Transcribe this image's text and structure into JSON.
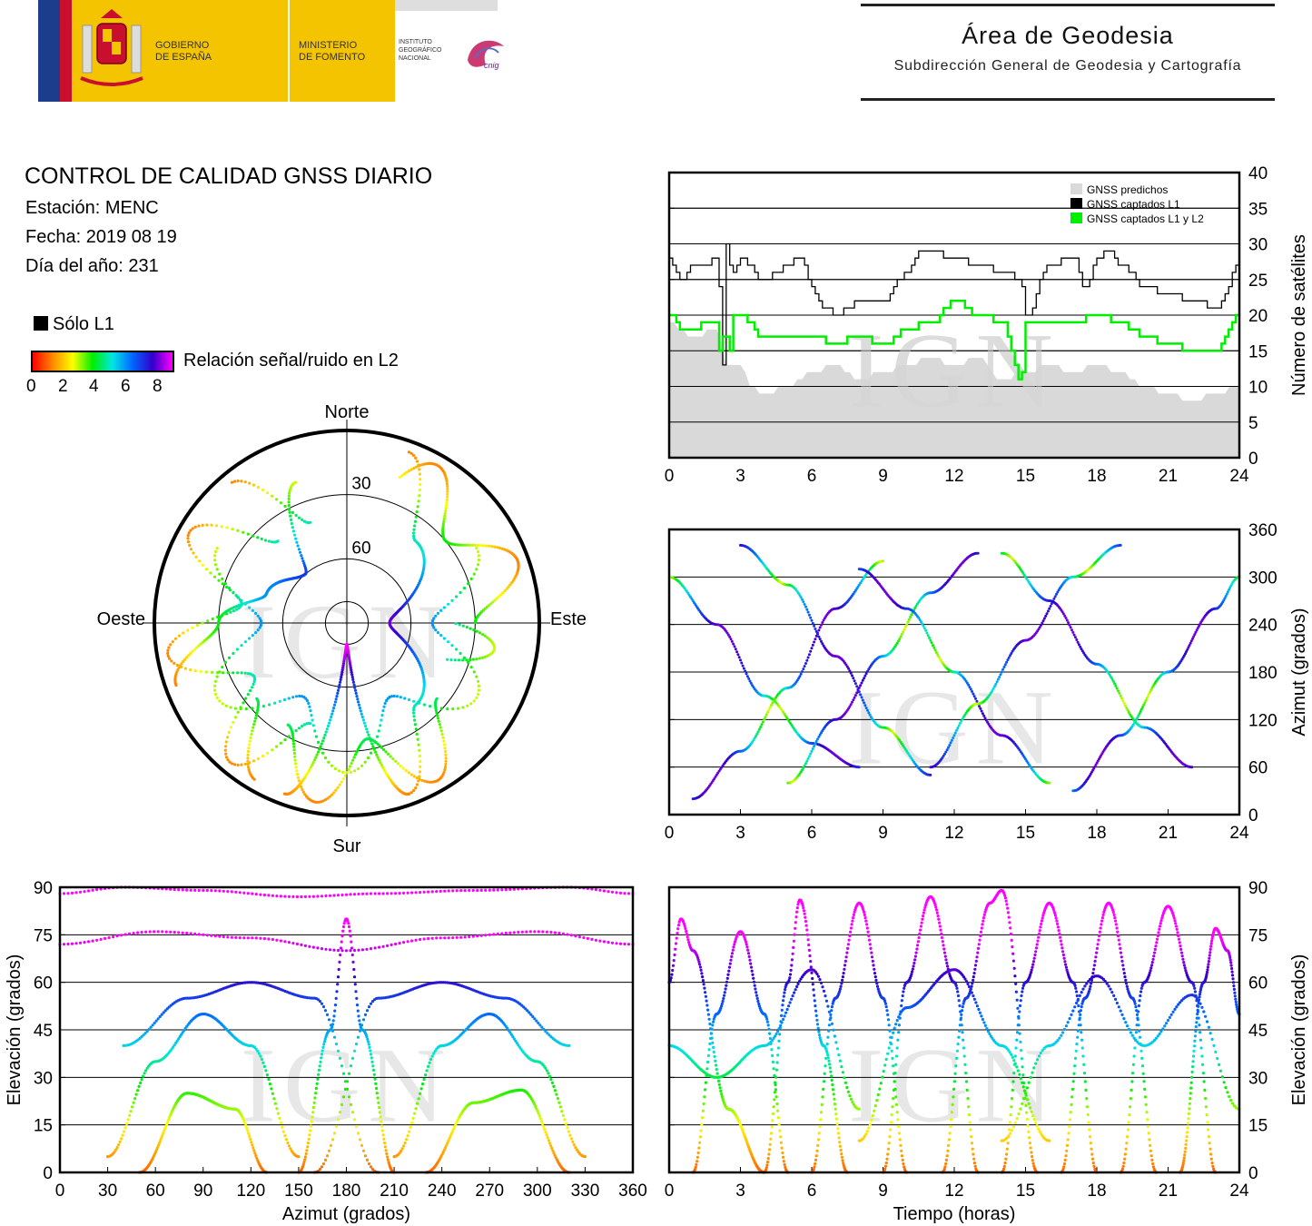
{
  "header": {
    "gov_line1": "GOBIERNO",
    "gov_line2": "DE ESPAÑA",
    "min_line1": "MINISTERIO",
    "min_line2": "DE FOMENTO",
    "ign_line1": "INSTITUTO",
    "ign_line2": "GEOGRÁFICO",
    "ign_line3": "NACIONAL",
    "cnig": "cnig",
    "area_title": "Área de Geodesia",
    "area_subtitle": "Subdirección General de Geodesia y Cartografía"
  },
  "info": {
    "title": "CONTROL DE CALIDAD GNSS DIARIO",
    "station": "Estación: MENC",
    "date": "Fecha: 2019 08 19",
    "doy": "Día del año: 231"
  },
  "legend": {
    "l1_only": "Sólo L1",
    "snr_label": "Relación señal/ruido en L2",
    "snr_ticks": [
      "0",
      "2",
      "4",
      "6",
      "8"
    ]
  },
  "watermark": "IGN",
  "colors": {
    "predicted": "#d9d9d9",
    "l1": "#000000",
    "l1l2": "#00ee00",
    "snr_gradient": [
      "#ff0000",
      "#ff8800",
      "#ffff00",
      "#00ee00",
      "#00e5e5",
      "#0066ff",
      "#3300cc",
      "#ff00ff"
    ]
  },
  "chart_data": [
    {
      "type": "line",
      "id": "satellite-count",
      "x_ticks": [
        "0",
        "3",
        "6",
        "9",
        "12",
        "15",
        "18",
        "21",
        "24"
      ],
      "y_ticks": [
        "0",
        "5",
        "10",
        "15",
        "20",
        "25",
        "30",
        "35",
        "40"
      ],
      "ylabel": "Número de satélites",
      "xlim": [
        0,
        24
      ],
      "ylim": [
        0,
        40
      ],
      "grid": true,
      "legend_position": "top-right",
      "series": [
        {
          "name": "GNSS predichos",
          "type": "area",
          "x": [
            0,
            1,
            2,
            2.5,
            3,
            3.5,
            4,
            5,
            6,
            7,
            8,
            9,
            10,
            11,
            12,
            13,
            14,
            15,
            16,
            17,
            18,
            19,
            20,
            21,
            22,
            23,
            24
          ],
          "values": [
            19,
            17,
            18,
            13,
            13,
            10,
            9,
            10,
            12,
            13,
            11,
            12,
            13,
            14,
            13,
            14,
            11,
            12,
            13,
            12,
            13,
            12,
            10,
            9,
            8,
            9,
            10
          ]
        },
        {
          "name": "GNSS captados L1",
          "x": [
            0,
            0.5,
            1,
            1.5,
            2,
            2.3,
            2.4,
            2.6,
            3,
            4,
            5,
            5.5,
            6,
            6.5,
            7,
            8,
            9,
            10,
            10.5,
            11,
            12,
            13,
            14,
            14.8,
            15,
            16,
            17,
            17.5,
            18,
            18.5,
            19,
            20,
            21,
            22,
            23,
            24
          ],
          "values": [
            28,
            25,
            27,
            27,
            28,
            12,
            30,
            26,
            28,
            25,
            27,
            28,
            24,
            21,
            20,
            22,
            22,
            26,
            29,
            29,
            28,
            27,
            26,
            25,
            20,
            27,
            28,
            24,
            28,
            29,
            27,
            24,
            23,
            22,
            21,
            27
          ]
        },
        {
          "name": "GNSS captados L1 y L2",
          "x": [
            0,
            0.5,
            1,
            1.5,
            2,
            2.2,
            2.3,
            2.5,
            2.6,
            3,
            4,
            5,
            6,
            7,
            8,
            9,
            10,
            11,
            12,
            13,
            14,
            14.8,
            15,
            16,
            17,
            18,
            19,
            20,
            21,
            22,
            23,
            24
          ],
          "values": [
            20,
            18,
            18,
            19,
            19,
            11,
            22,
            11,
            20,
            20,
            17,
            17,
            17,
            16,
            17,
            16,
            18,
            19,
            22,
            20,
            19,
            11,
            19,
            19,
            19,
            20,
            19,
            17,
            16,
            15,
            15,
            20
          ]
        }
      ]
    },
    {
      "type": "scatter",
      "id": "azimuth-vs-time",
      "x_ticks": [
        "0",
        "3",
        "6",
        "9",
        "12",
        "15",
        "18",
        "21",
        "24"
      ],
      "y_ticks": [
        "0",
        "60",
        "120",
        "180",
        "240",
        "300",
        "360"
      ],
      "ylabel": "Azimut (grados)",
      "xlim": [
        0,
        24
      ],
      "ylim": [
        0,
        360
      ],
      "grid": true,
      "color_scale": "snr_l2",
      "tracks": [
        {
          "x": [
            0,
            2,
            4,
            6,
            8
          ],
          "values": [
            300,
            240,
            150,
            90,
            60
          ]
        },
        {
          "x": [
            1,
            3,
            5,
            7,
            9
          ],
          "values": [
            20,
            80,
            160,
            260,
            320
          ]
        },
        {
          "x": [
            3,
            5,
            7,
            9,
            11
          ],
          "values": [
            340,
            290,
            200,
            110,
            50
          ]
        },
        {
          "x": [
            5,
            7,
            9,
            11,
            13
          ],
          "values": [
            40,
            120,
            200,
            280,
            330
          ]
        },
        {
          "x": [
            8,
            10,
            12,
            14,
            16
          ],
          "values": [
            310,
            260,
            180,
            100,
            40
          ]
        },
        {
          "x": [
            11,
            13,
            15,
            17,
            19
          ],
          "values": [
            60,
            140,
            220,
            300,
            340
          ]
        },
        {
          "x": [
            14,
            16,
            18,
            20,
            22
          ],
          "values": [
            330,
            270,
            190,
            110,
            60
          ]
        },
        {
          "x": [
            17,
            19,
            21,
            23,
            24
          ],
          "values": [
            30,
            100,
            180,
            260,
            300
          ]
        }
      ]
    },
    {
      "type": "scatter",
      "id": "elevation-vs-azimuth",
      "x_ticks": [
        "0",
        "30",
        "60",
        "90",
        "120",
        "150",
        "180",
        "210",
        "240",
        "270",
        "300",
        "330",
        "360"
      ],
      "y_ticks": [
        "0",
        "15",
        "30",
        "45",
        "60",
        "75",
        "90"
      ],
      "xlabel": "Azimut (grados)",
      "ylabel": "Elevación (grados)",
      "xlim": [
        0,
        360
      ],
      "ylim": [
        0,
        90
      ],
      "grid": true,
      "color_scale": "snr_l2",
      "tracks": [
        {
          "x": [
            30,
            60,
            90,
            120,
            150
          ],
          "values": [
            5,
            35,
            50,
            40,
            5
          ]
        },
        {
          "x": [
            0,
            60,
            120,
            180,
            240,
            300,
            360
          ],
          "values": [
            72,
            76,
            74,
            70,
            74,
            76,
            72
          ]
        },
        {
          "x": [
            150,
            170,
            180,
            190,
            210
          ],
          "values": [
            0,
            45,
            80,
            45,
            0
          ]
        },
        {
          "x": [
            210,
            240,
            270,
            300,
            330
          ],
          "values": [
            5,
            40,
            50,
            35,
            5
          ]
        },
        {
          "x": [
            40,
            80,
            120,
            160,
            200
          ],
          "values": [
            40,
            55,
            60,
            55,
            0
          ]
        },
        {
          "x": [
            160,
            200,
            240,
            280,
            320
          ],
          "values": [
            0,
            55,
            60,
            55,
            40
          ]
        },
        {
          "x": [
            0,
            40,
            90,
            150,
            200,
            260,
            320,
            360
          ],
          "values": [
            88,
            90,
            89,
            87,
            88,
            89,
            90,
            88
          ]
        },
        {
          "x": [
            50,
            80,
            110,
            130
          ],
          "values": [
            0,
            25,
            20,
            0
          ]
        },
        {
          "x": [
            230,
            260,
            290,
            320
          ],
          "values": [
            0,
            22,
            26,
            0
          ]
        }
      ]
    },
    {
      "type": "scatter",
      "id": "elevation-vs-time",
      "x_ticks": [
        "0",
        "3",
        "6",
        "9",
        "12",
        "15",
        "18",
        "21",
        "24"
      ],
      "y_ticks": [
        "0",
        "15",
        "30",
        "45",
        "60",
        "75",
        "90"
      ],
      "xlabel": "Tiempo (horas)",
      "ylabel": "Elevación (grados)",
      "xlim": [
        0,
        24
      ],
      "ylim": [
        0,
        90
      ],
      "grid": true,
      "color_scale": "snr_l2",
      "tracks": [
        {
          "x": [
            0,
            0.5,
            1,
            2.5,
            4
          ],
          "values": [
            60,
            80,
            70,
            20,
            0
          ]
        },
        {
          "x": [
            1,
            2,
            3,
            4,
            5
          ],
          "values": [
            0,
            50,
            76,
            50,
            0
          ]
        },
        {
          "x": [
            4,
            5,
            5.5,
            6.5,
            7.5
          ],
          "values": [
            0,
            60,
            86,
            40,
            0
          ]
        },
        {
          "x": [
            6,
            7,
            8,
            9,
            10
          ],
          "values": [
            0,
            55,
            85,
            55,
            0
          ]
        },
        {
          "x": [
            9,
            10,
            11,
            12,
            13
          ],
          "values": [
            0,
            60,
            87,
            60,
            0
          ]
        },
        {
          "x": [
            11.5,
            12.5,
            13.5,
            14,
            15.5
          ],
          "values": [
            0,
            55,
            85,
            89,
            0
          ]
        },
        {
          "x": [
            14,
            15,
            16,
            17,
            18
          ],
          "values": [
            0,
            60,
            85,
            60,
            0
          ]
        },
        {
          "x": [
            16.5,
            17.5,
            18.5,
            19.5,
            20.5
          ],
          "values": [
            0,
            55,
            85,
            55,
            0
          ]
        },
        {
          "x": [
            19,
            20,
            21,
            22,
            23
          ],
          "values": [
            0,
            60,
            84,
            60,
            0
          ]
        },
        {
          "x": [
            21.5,
            22.5,
            23,
            23.5,
            24
          ],
          "values": [
            0,
            60,
            77,
            70,
            50
          ]
        },
        {
          "x": [
            0,
            2,
            4,
            6,
            8
          ],
          "values": [
            40,
            30,
            40,
            64,
            20
          ]
        },
        {
          "x": [
            8,
            10,
            12,
            14,
            16
          ],
          "values": [
            10,
            52,
            64,
            40,
            10
          ]
        },
        {
          "x": [
            14,
            16,
            18,
            20,
            22,
            24
          ],
          "values": [
            10,
            40,
            62,
            40,
            56,
            20
          ]
        }
      ]
    },
    {
      "type": "scatter",
      "id": "skyplot",
      "projection": "polar",
      "directions": {
        "north": "Norte",
        "south": "Sur",
        "east": "Este",
        "west": "Oeste"
      },
      "elevation_rings": [
        "30",
        "60"
      ],
      "color_scale": "snr_l2",
      "tracks": [
        {
          "az": [
            20,
            40,
            90,
            140,
            160
          ],
          "el": [
            5,
            40,
            70,
            40,
            5
          ]
        },
        {
          "az": [
            340,
            320,
            270,
            220,
            200
          ],
          "el": [
            5,
            40,
            70,
            40,
            5
          ]
        },
        {
          "az": [
            300,
            330,
            0,
            30,
            60
          ],
          "el": [
            20,
            50,
            62,
            50,
            20
          ]
        },
        {
          "az": [
            200,
            180,
            160
          ],
          "el": [
            5,
            80,
            5
          ]
        },
        {
          "az": [
            250,
            270,
            290,
            320,
            340
          ],
          "el": [
            5,
            30,
            50,
            60,
            20
          ]
        },
        {
          "az": [
            110,
            90,
            70,
            40,
            20
          ],
          "el": [
            5,
            30,
            50,
            60,
            20
          ]
        },
        {
          "az": [
            230,
            210,
            180,
            150,
            130
          ],
          "el": [
            5,
            35,
            55,
            35,
            5
          ]
        }
      ]
    }
  ]
}
